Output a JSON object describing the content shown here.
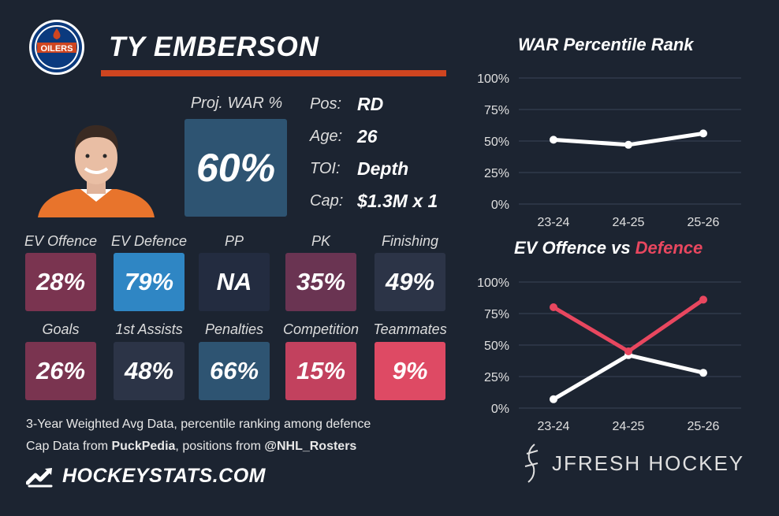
{
  "player": {
    "name": "TY EMBERSON"
  },
  "team_logo": {
    "text": "OILERS"
  },
  "proj_war": {
    "label": "Proj. WAR %",
    "value": "60%"
  },
  "info": [
    {
      "key": "Pos:",
      "value": "RD"
    },
    {
      "key": "Age:",
      "value": "26"
    },
    {
      "key": "TOI:",
      "value": "Depth"
    },
    {
      "key": "Cap:",
      "value": "$1.3M x 1"
    }
  ],
  "stats_row1": [
    {
      "label": "EV Offence",
      "value": "28%",
      "pct": 28
    },
    {
      "label": "EV Defence",
      "value": "79%",
      "pct": 79
    },
    {
      "label": "PP",
      "value": "NA",
      "pct": null
    },
    {
      "label": "PK",
      "value": "35%",
      "pct": 35
    },
    {
      "label": "Finishing",
      "value": "49%",
      "pct": 49
    }
  ],
  "stats_row2": [
    {
      "label": "Goals",
      "value": "26%",
      "pct": 26
    },
    {
      "label": "1st Assists",
      "value": "48%",
      "pct": 48
    },
    {
      "label": "Penalties",
      "value": "66%",
      "pct": 66
    },
    {
      "label": "Competition",
      "value": "15%",
      "pct": 15
    },
    {
      "label": "Teammates",
      "value": "9%",
      "pct": 9
    }
  ],
  "colors": {
    "bg": "#1c2431",
    "accent": "#cf4520",
    "red": "#e8475f",
    "white": "#ffffff",
    "tile_red_dark": "#7a3450",
    "tile_blue": "#2f86c4",
    "tile_neutral": "#232c40",
    "tile_mid_red": "#6a3452",
    "tile_red": "#c2415e",
    "tile_bright_red": "#de4a64",
    "tile_blue_mid": "#2e5472",
    "tile_slate": "#2c3447"
  },
  "notes": {
    "line1": "3-Year Weighted Avg Data, percentile ranking among defence",
    "line2_prefix": "Cap Data from ",
    "line2_bold1": "PuckPedia",
    "line2_mid": ", positions from ",
    "line2_bold2": "@NHL_Rosters"
  },
  "brand": {
    "text": "HOCKEYSTATS.COM",
    "icon": "hockeystats-logo-icon"
  },
  "credit": {
    "text": "JFRESH HOCKEY",
    "icon": "jfresh-logo-icon"
  },
  "chart_data": [
    {
      "type": "line",
      "title": "WAR Percentile Rank",
      "categories": [
        "23-24",
        "24-25",
        "25-26"
      ],
      "series": [
        {
          "values": [
            51,
            47,
            56
          ],
          "color": "#ffffff"
        }
      ],
      "ylim": [
        0,
        100
      ],
      "yticks": [
        "0%",
        "25%",
        "50%",
        "75%",
        "100%"
      ],
      "grid": true
    },
    {
      "type": "line",
      "title_part1": "EV Offence vs ",
      "title_part2": "Defence",
      "categories": [
        "23-24",
        "24-25",
        "25-26"
      ],
      "series": [
        {
          "name": "EV Offence",
          "values": [
            7,
            42,
            28
          ],
          "color": "#ffffff"
        },
        {
          "name": "Defence",
          "values": [
            80,
            45,
            86
          ],
          "color": "#e8475f"
        }
      ],
      "ylim": [
        0,
        100
      ],
      "yticks": [
        "0%",
        "25%",
        "50%",
        "75%",
        "100%"
      ],
      "grid": true
    }
  ]
}
